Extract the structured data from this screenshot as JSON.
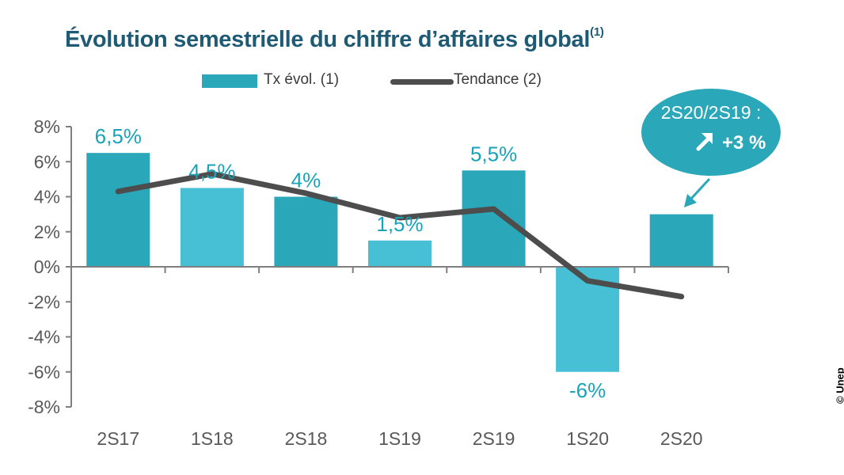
{
  "title": "Évolution semestrielle du chiffre d’affaires global",
  "title_note": "(1)",
  "legend": {
    "bar_label": "Tx évol. (1)",
    "line_label": "Tendance (2)"
  },
  "callout": {
    "line1": "2S20/2S19 :",
    "arrow_icon": "arrow-up-right-icon",
    "line2": "+3 %"
  },
  "copyright": "© Unep",
  "colors": {
    "bar_dark": "#2aa7b8",
    "bar_light": "#47bfd4",
    "line": "#4d4d4d",
    "label": "#1aa3b8",
    "title": "#1f5a74",
    "bubble": "#2aa7b8"
  },
  "chart_data": {
    "type": "bar",
    "title": "Évolution semestrielle du chiffre d’affaires global",
    "categories": [
      "2S17",
      "1S18",
      "2S18",
      "1S19",
      "2S19",
      "1S20",
      "2S20"
    ],
    "series": [
      {
        "name": "Tx évol. (1)",
        "type": "bar",
        "values": [
          6.5,
          4.5,
          4,
          1.5,
          5.5,
          -6,
          3
        ],
        "labels": [
          "6,5%",
          "4,5%",
          "4%",
          "1,5%",
          "5,5%",
          "-6%",
          ""
        ]
      },
      {
        "name": "Tendance (2)",
        "type": "line",
        "values": [
          4.3,
          5.3,
          4.2,
          2.8,
          3.3,
          -0.8,
          -1.7
        ]
      }
    ],
    "yticks": [
      "8%",
      "6%",
      "4%",
      "2%",
      "0%",
      "-2%",
      "-4%",
      "-6%",
      "-8%"
    ],
    "ylim": [
      -8,
      8
    ],
    "grid": false,
    "legend_position": "top"
  }
}
